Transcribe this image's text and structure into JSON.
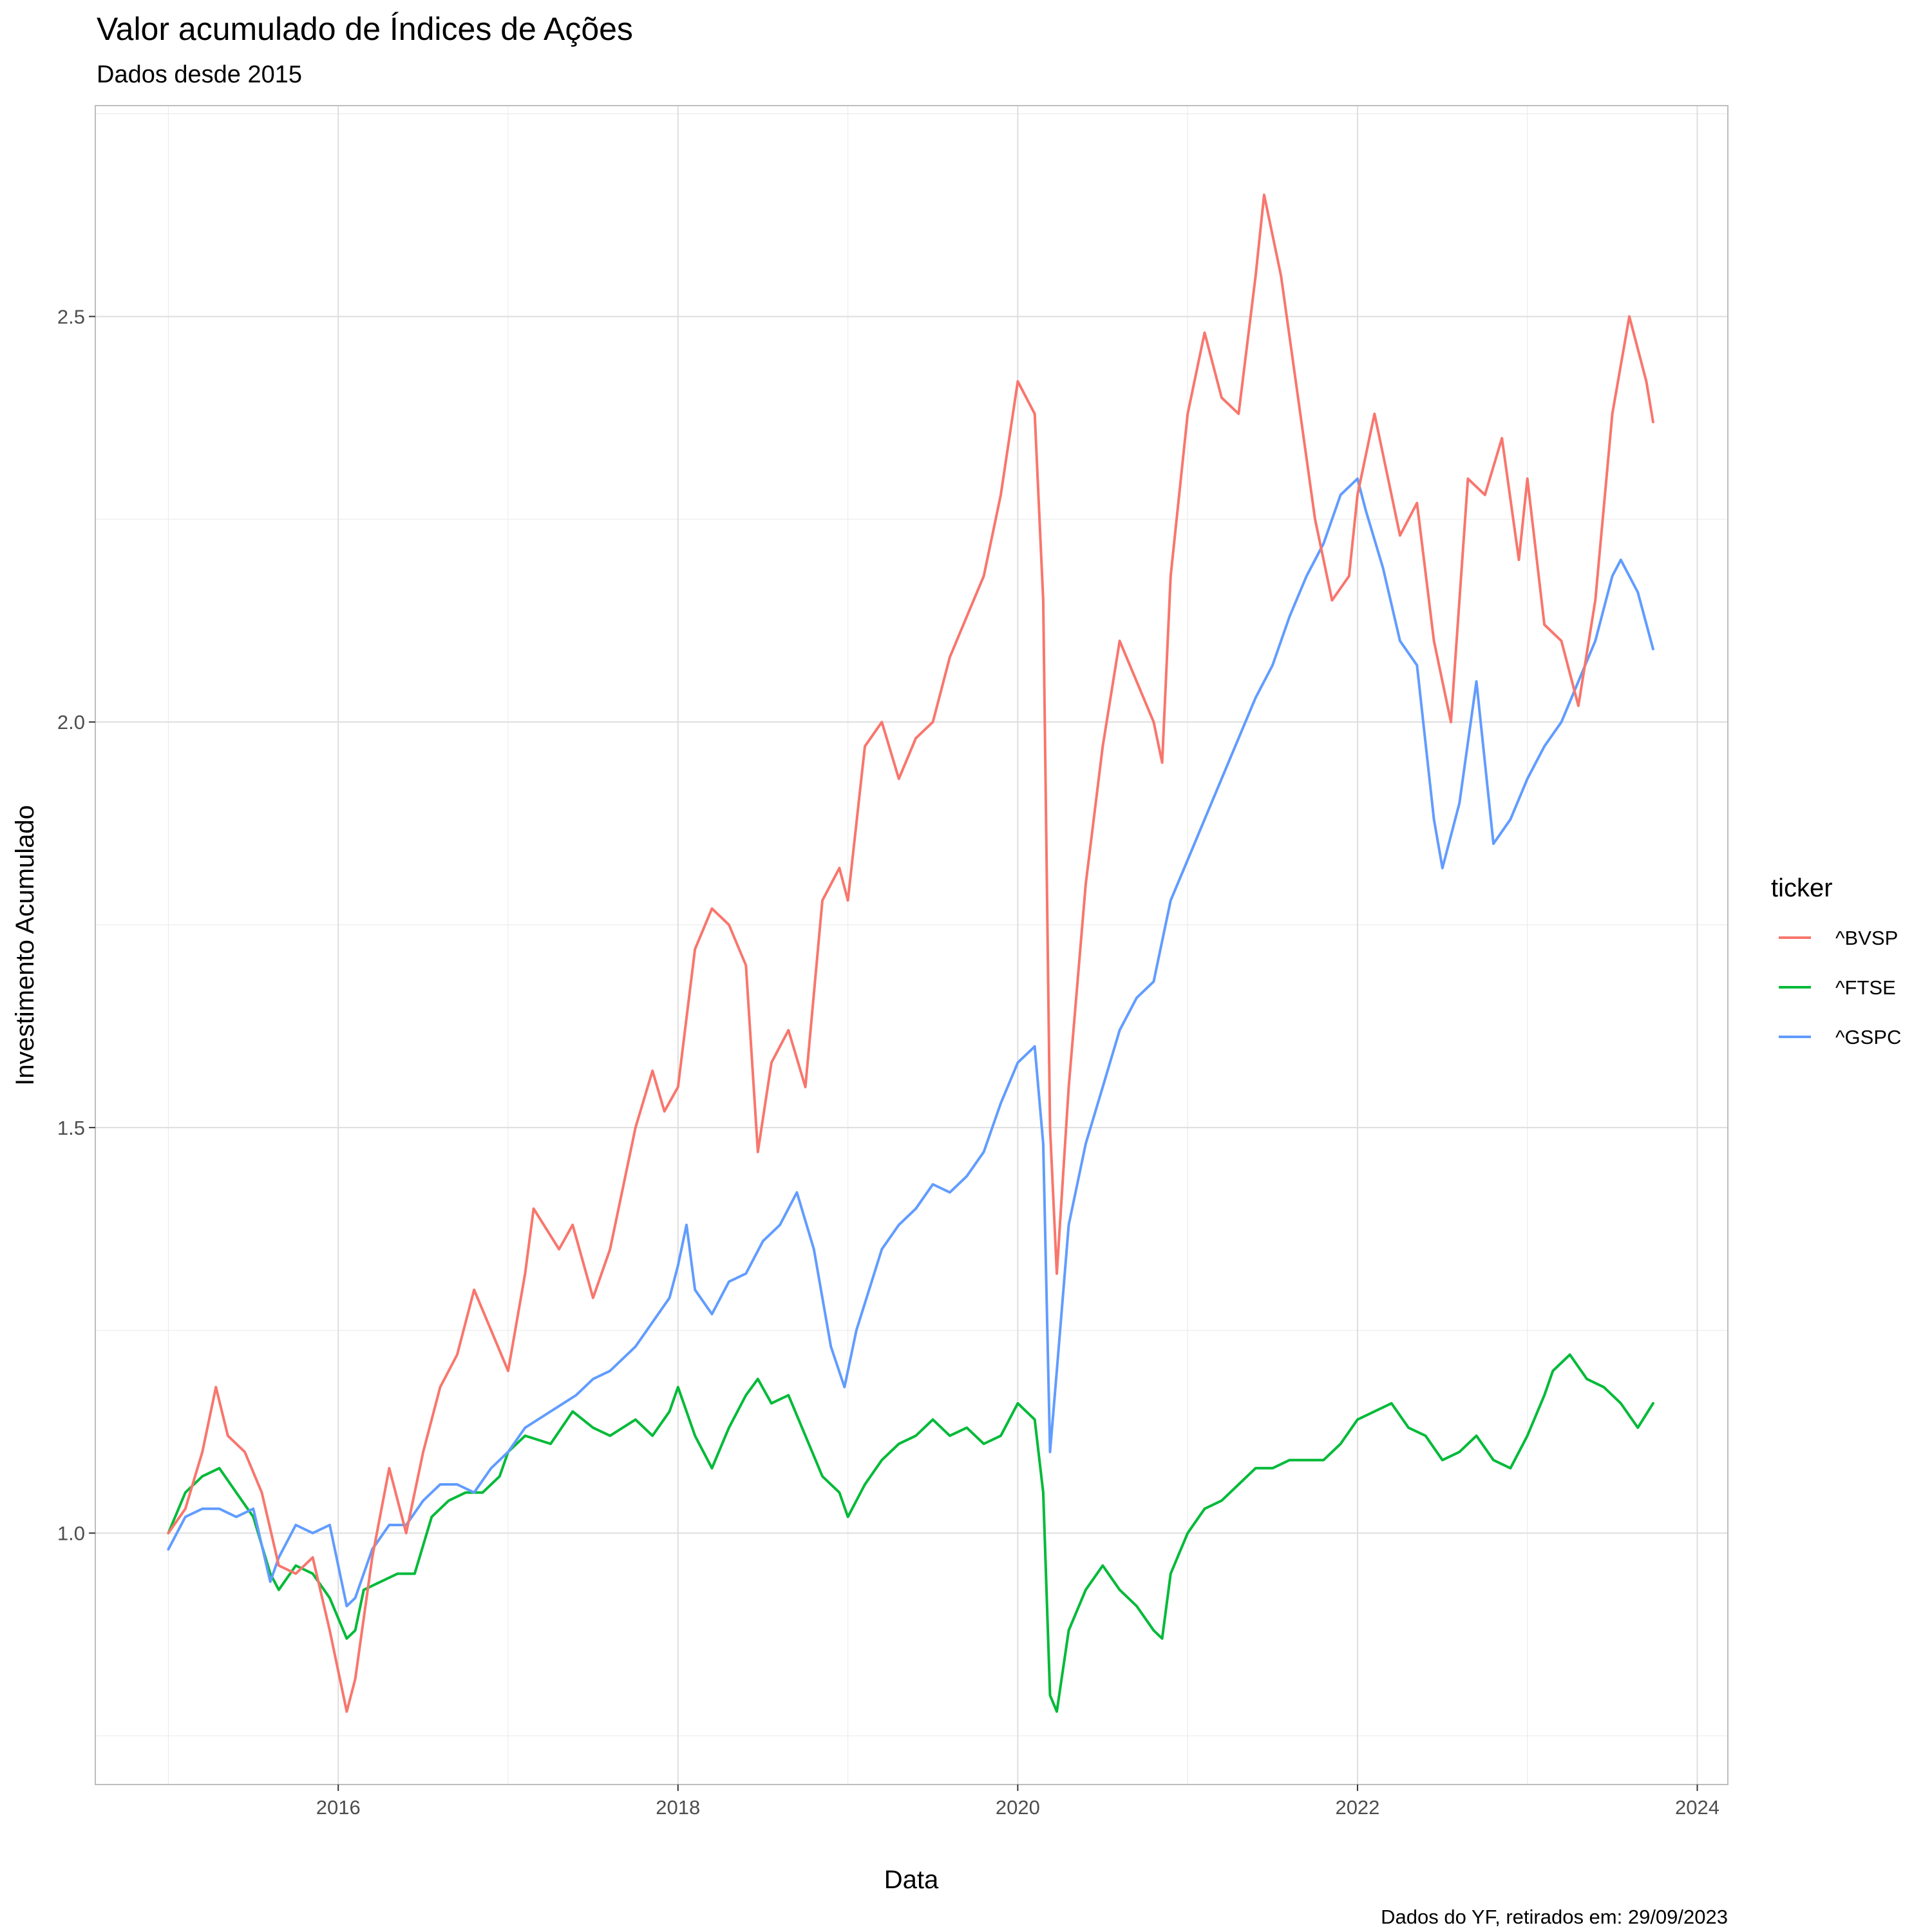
{
  "chart_data": {
    "type": "line",
    "title": "Valor acumulado de Índices de Ações",
    "subtitle": "Dados desde 2015",
    "xlabel": "Data",
    "ylabel": "Investimento Acumulado",
    "caption": "Dados do YF, retirados em: 29/09/2023",
    "legend_title": "ticker",
    "legend_position": "right",
    "grid": true,
    "xlim": [
      2014.57,
      2024.18
    ],
    "ylim": [
      0.69,
      2.76
    ],
    "x_ticks": [
      2016,
      2018,
      2020,
      2022,
      2024
    ],
    "x_tick_labels": [
      "2016",
      "2018",
      "2020",
      "2022",
      "2024"
    ],
    "y_ticks": [
      1.0,
      1.5,
      2.0,
      2.5
    ],
    "y_tick_labels": [
      "1.0",
      "1.5",
      "2.0",
      "2.5"
    ],
    "series": [
      {
        "name": "^BVSP",
        "color": "#F8766D",
        "x": [
          2015.0,
          2015.1,
          2015.2,
          2015.28,
          2015.35,
          2015.45,
          2015.55,
          2015.65,
          2015.75,
          2015.85,
          2015.95,
          2016.05,
          2016.1,
          2016.2,
          2016.3,
          2016.4,
          2016.5,
          2016.6,
          2016.7,
          2016.8,
          2016.9,
          2017.0,
          2017.1,
          2017.15,
          2017.3,
          2017.38,
          2017.5,
          2017.6,
          2017.75,
          2017.85,
          2017.92,
          2018.0,
          2018.1,
          2018.2,
          2018.3,
          2018.4,
          2018.47,
          2018.55,
          2018.65,
          2018.75,
          2018.85,
          2018.95,
          2019.0,
          2019.1,
          2019.2,
          2019.3,
          2019.4,
          2019.5,
          2019.6,
          2019.7,
          2019.8,
          2019.9,
          2020.0,
          2020.1,
          2020.15,
          2020.19,
          2020.23,
          2020.3,
          2020.4,
          2020.5,
          2020.6,
          2020.7,
          2020.8,
          2020.85,
          2020.9,
          2021.0,
          2021.1,
          2021.2,
          2021.3,
          2021.4,
          2021.45,
          2021.55,
          2021.65,
          2021.75,
          2021.85,
          2021.95,
          2022.0,
          2022.1,
          2022.25,
          2022.35,
          2022.45,
          2022.55,
          2022.65,
          2022.75,
          2022.85,
          2022.95,
          2023.0,
          2023.1,
          2023.2,
          2023.3,
          2023.4,
          2023.5,
          2023.6,
          2023.7,
          2023.74
        ],
        "y": [
          1.0,
          1.03,
          1.1,
          1.18,
          1.12,
          1.1,
          1.05,
          0.96,
          0.95,
          0.97,
          0.88,
          0.78,
          0.82,
          0.97,
          1.08,
          1.0,
          1.1,
          1.18,
          1.22,
          1.3,
          1.25,
          1.2,
          1.32,
          1.4,
          1.35,
          1.38,
          1.29,
          1.35,
          1.5,
          1.57,
          1.52,
          1.55,
          1.72,
          1.77,
          1.75,
          1.7,
          1.47,
          1.58,
          1.62,
          1.55,
          1.78,
          1.82,
          1.78,
          1.97,
          2.0,
          1.93,
          1.98,
          2.0,
          2.08,
          2.13,
          2.18,
          2.28,
          2.42,
          2.38,
          2.15,
          1.5,
          1.32,
          1.55,
          1.8,
          1.97,
          2.1,
          2.05,
          2.0,
          1.95,
          2.18,
          2.38,
          2.48,
          2.4,
          2.38,
          2.55,
          2.65,
          2.55,
          2.4,
          2.25,
          2.15,
          2.18,
          2.28,
          2.38,
          2.23,
          2.27,
          2.1,
          2.0,
          2.3,
          2.28,
          2.35,
          2.2,
          2.3,
          2.12,
          2.1,
          2.02,
          2.15,
          2.38,
          2.5,
          2.42,
          2.37
        ]
      },
      {
        "name": "^FTSE",
        "color": "#00BA38",
        "x": [
          2015.0,
          2015.1,
          2015.2,
          2015.3,
          2015.4,
          2015.5,
          2015.6,
          2015.65,
          2015.75,
          2015.85,
          2015.95,
          2016.05,
          2016.1,
          2016.15,
          2016.25,
          2016.35,
          2016.45,
          2016.55,
          2016.65,
          2016.75,
          2016.85,
          2016.95,
          2017.0,
          2017.1,
          2017.25,
          2017.38,
          2017.5,
          2017.6,
          2017.75,
          2017.85,
          2017.95,
          2018.0,
          2018.1,
          2018.2,
          2018.3,
          2018.4,
          2018.47,
          2018.55,
          2018.65,
          2018.75,
          2018.85,
          2018.95,
          2019.0,
          2019.1,
          2019.2,
          2019.3,
          2019.4,
          2019.5,
          2019.6,
          2019.7,
          2019.8,
          2019.9,
          2020.0,
          2020.1,
          2020.15,
          2020.19,
          2020.23,
          2020.3,
          2020.4,
          2020.5,
          2020.6,
          2020.7,
          2020.8,
          2020.85,
          2020.9,
          2021.0,
          2021.1,
          2021.2,
          2021.3,
          2021.4,
          2021.5,
          2021.6,
          2021.7,
          2021.8,
          2021.9,
          2022.0,
          2022.1,
          2022.2,
          2022.3,
          2022.4,
          2022.5,
          2022.6,
          2022.7,
          2022.8,
          2022.9,
          2023.0,
          2023.1,
          2023.15,
          2023.25,
          2023.35,
          2023.45,
          2023.55,
          2023.65,
          2023.74
        ],
        "y": [
          1.0,
          1.05,
          1.07,
          1.08,
          1.05,
          1.02,
          0.95,
          0.93,
          0.96,
          0.95,
          0.92,
          0.87,
          0.88,
          0.93,
          0.94,
          0.95,
          0.95,
          1.02,
          1.04,
          1.05,
          1.05,
          1.07,
          1.1,
          1.12,
          1.11,
          1.15,
          1.13,
          1.12,
          1.14,
          1.12,
          1.15,
          1.18,
          1.12,
          1.08,
          1.13,
          1.17,
          1.19,
          1.16,
          1.17,
          1.12,
          1.07,
          1.05,
          1.02,
          1.06,
          1.09,
          1.11,
          1.12,
          1.14,
          1.12,
          1.13,
          1.11,
          1.12,
          1.16,
          1.14,
          1.05,
          0.8,
          0.78,
          0.88,
          0.93,
          0.96,
          0.93,
          0.91,
          0.88,
          0.87,
          0.95,
          1.0,
          1.03,
          1.04,
          1.06,
          1.08,
          1.08,
          1.09,
          1.09,
          1.09,
          1.11,
          1.14,
          1.15,
          1.16,
          1.13,
          1.12,
          1.09,
          1.1,
          1.12,
          1.09,
          1.08,
          1.12,
          1.17,
          1.2,
          1.22,
          1.19,
          1.18,
          1.16,
          1.13,
          1.16
        ]
      },
      {
        "name": "^GSPC",
        "color": "#619CFF",
        "x": [
          2015.0,
          2015.1,
          2015.2,
          2015.3,
          2015.4,
          2015.5,
          2015.6,
          2015.65,
          2015.75,
          2015.85,
          2015.95,
          2016.05,
          2016.1,
          2016.2,
          2016.3,
          2016.4,
          2016.5,
          2016.6,
          2016.7,
          2016.8,
          2016.9,
          2017.0,
          2017.1,
          2017.25,
          2017.4,
          2017.5,
          2017.6,
          2017.75,
          2017.85,
          2017.95,
          2018.0,
          2018.05,
          2018.1,
          2018.2,
          2018.3,
          2018.4,
          2018.5,
          2018.6,
          2018.7,
          2018.8,
          2018.9,
          2018.98,
          2019.05,
          2019.2,
          2019.3,
          2019.4,
          2019.5,
          2019.6,
          2019.7,
          2019.8,
          2019.9,
          2020.0,
          2020.1,
          2020.15,
          2020.19,
          2020.23,
          2020.3,
          2020.4,
          2020.5,
          2020.6,
          2020.7,
          2020.8,
          2020.85,
          2020.9,
          2021.0,
          2021.1,
          2021.2,
          2021.3,
          2021.4,
          2021.5,
          2021.6,
          2021.7,
          2021.8,
          2021.9,
          2022.0,
          2022.05,
          2022.15,
          2022.25,
          2022.35,
          2022.45,
          2022.5,
          2022.6,
          2022.7,
          2022.8,
          2022.9,
          2023.0,
          2023.1,
          2023.2,
          2023.3,
          2023.4,
          2023.5,
          2023.55,
          2023.65,
          2023.74
        ],
        "y": [
          0.98,
          1.02,
          1.03,
          1.03,
          1.02,
          1.03,
          0.94,
          0.97,
          1.01,
          1.0,
          1.01,
          0.91,
          0.92,
          0.98,
          1.01,
          1.01,
          1.04,
          1.06,
          1.06,
          1.05,
          1.08,
          1.1,
          1.13,
          1.15,
          1.17,
          1.19,
          1.2,
          1.23,
          1.26,
          1.29,
          1.33,
          1.38,
          1.3,
          1.27,
          1.31,
          1.32,
          1.36,
          1.38,
          1.42,
          1.35,
          1.23,
          1.18,
          1.25,
          1.35,
          1.38,
          1.4,
          1.43,
          1.42,
          1.44,
          1.47,
          1.53,
          1.58,
          1.6,
          1.48,
          1.1,
          1.2,
          1.38,
          1.48,
          1.55,
          1.62,
          1.66,
          1.68,
          1.73,
          1.78,
          1.83,
          1.88,
          1.93,
          1.98,
          2.03,
          2.07,
          2.13,
          2.18,
          2.22,
          2.28,
          2.3,
          2.26,
          2.19,
          2.1,
          2.07,
          1.88,
          1.82,
          1.9,
          2.05,
          1.85,
          1.88,
          1.93,
          1.97,
          2.0,
          2.05,
          2.1,
          2.18,
          2.2,
          2.16,
          2.09
        ]
      }
    ]
  }
}
